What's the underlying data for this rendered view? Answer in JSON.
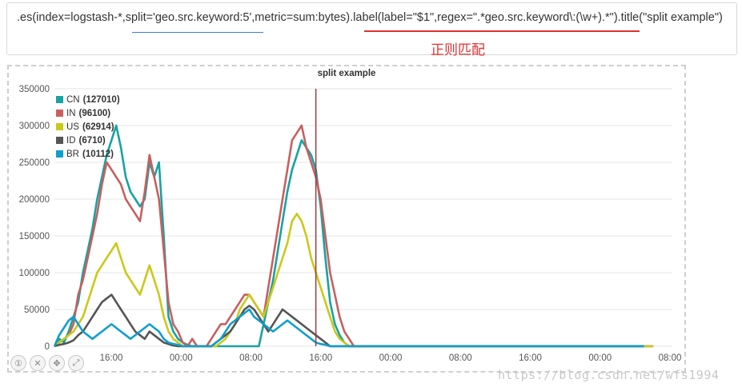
{
  "expression": ".es(index=logstash-*,split='geo.src.keyword:5',metric=sum:bytes).label(label=\"$1\",regex=\".*geo.src.keyword\\:(\\w+).*\").title(\"split example\")",
  "annotation": "正则匹配",
  "watermark": "https://blog.csdn.net/wfs1994",
  "controls": [
    "①",
    "✕",
    "✥",
    "⤢"
  ],
  "control_icons": [
    "zoom-reset-icon",
    "close-icon",
    "pan-icon",
    "fullscreen-icon"
  ],
  "chart_data": {
    "type": "line",
    "title": "split example",
    "ylim": [
      0,
      350000
    ],
    "y_ticks": [
      0,
      50000,
      100000,
      150000,
      200000,
      250000,
      300000,
      350000
    ],
    "x_ticks": [
      "16:00",
      "00:00",
      "08:00",
      "16:00",
      "00:00",
      "08:00",
      "16:00",
      "00:00",
      "08:00"
    ],
    "x_range": [
      0,
      130
    ],
    "grid": true,
    "legend_position": "top-left",
    "marker_x": 55,
    "series": [
      {
        "name": "CN",
        "count": "127010",
        "color": "#18a2a2",
        "values": [
          0,
          10000,
          5000,
          20000,
          40000,
          60000,
          100000,
          130000,
          160000,
          200000,
          230000,
          260000,
          280000,
          300000,
          270000,
          230000,
          210000,
          200000,
          190000,
          200000,
          250000,
          230000,
          250000,
          150000,
          40000,
          20000,
          10000,
          5000,
          2000,
          0,
          0,
          0,
          0,
          0,
          0,
          0,
          0,
          0,
          0,
          0,
          0,
          0,
          0,
          0,
          30000,
          60000,
          90000,
          130000,
          170000,
          210000,
          240000,
          260000,
          280000,
          270000,
          260000,
          240000,
          190000,
          120000,
          60000,
          30000,
          15000,
          5000,
          0,
          0,
          0,
          0,
          0,
          0,
          0,
          0,
          0,
          0,
          0,
          0,
          0,
          0,
          0,
          0,
          0,
          0,
          0,
          0,
          0,
          0,
          0,
          0,
          0,
          0,
          0,
          0,
          0,
          0,
          0,
          0,
          0,
          0,
          0,
          0,
          0,
          0,
          0,
          0,
          0,
          0,
          0,
          0,
          0,
          0,
          0,
          0,
          0,
          0,
          0,
          0,
          0,
          0,
          0,
          0,
          0,
          0,
          0,
          0,
          0,
          0,
          0,
          0
        ]
      },
      {
        "name": "IN",
        "count": "96100",
        "color": "#c85f5f",
        "values": [
          0,
          5000,
          10000,
          15000,
          30000,
          70000,
          90000,
          120000,
          150000,
          180000,
          220000,
          250000,
          240000,
          230000,
          220000,
          200000,
          190000,
          180000,
          170000,
          210000,
          260000,
          230000,
          200000,
          130000,
          60000,
          30000,
          20000,
          5000,
          0,
          10000,
          0,
          0,
          0,
          10000,
          20000,
          30000,
          30000,
          40000,
          50000,
          60000,
          70000,
          70000,
          60000,
          50000,
          40000,
          80000,
          120000,
          160000,
          200000,
          240000,
          280000,
          290000,
          300000,
          270000,
          250000,
          230000,
          200000,
          150000,
          100000,
          70000,
          40000,
          20000,
          10000,
          0,
          0,
          0,
          0,
          0,
          0,
          0,
          0,
          0,
          0,
          0,
          0,
          0,
          0,
          0,
          0,
          0,
          0,
          0,
          0,
          0,
          0,
          0,
          0,
          0,
          0,
          0,
          0,
          0,
          0,
          0,
          0,
          0,
          0,
          0,
          0,
          0,
          0,
          0,
          0,
          0,
          0,
          0,
          0,
          0,
          0,
          0,
          0,
          0,
          0,
          0,
          0,
          0,
          0,
          0,
          0,
          0,
          0,
          0,
          0,
          0,
          0,
          0,
          0
        ]
      },
      {
        "name": "US",
        "count": "62914",
        "color": "#c9c91a",
        "values": [
          0,
          5000,
          10000,
          15000,
          20000,
          30000,
          40000,
          60000,
          80000,
          100000,
          110000,
          120000,
          130000,
          140000,
          120000,
          100000,
          90000,
          80000,
          70000,
          90000,
          110000,
          90000,
          70000,
          40000,
          20000,
          10000,
          5000,
          0,
          0,
          0,
          0,
          0,
          0,
          0,
          0,
          5000,
          10000,
          20000,
          30000,
          50000,
          60000,
          70000,
          60000,
          50000,
          40000,
          60000,
          80000,
          100000,
          120000,
          140000,
          170000,
          180000,
          170000,
          150000,
          120000,
          100000,
          80000,
          60000,
          40000,
          20000,
          10000,
          5000,
          0,
          0,
          0,
          0,
          0,
          0,
          0,
          0,
          0,
          0,
          0,
          0,
          0,
          0,
          0,
          0,
          0,
          0,
          0,
          0,
          0,
          0,
          0,
          0,
          0,
          0,
          0,
          0,
          0,
          0,
          0,
          0,
          0,
          0,
          0,
          0,
          0,
          0,
          0,
          0,
          0,
          0,
          0,
          0,
          0,
          0,
          0,
          0,
          0,
          0,
          0,
          0,
          0,
          0,
          0,
          0,
          0,
          0,
          0,
          0,
          0,
          0,
          0,
          0,
          0
        ]
      },
      {
        "name": "ID",
        "count": "6710",
        "color": "#555555",
        "values": [
          0,
          2000,
          3000,
          5000,
          8000,
          15000,
          20000,
          30000,
          40000,
          50000,
          60000,
          65000,
          70000,
          60000,
          50000,
          40000,
          30000,
          20000,
          15000,
          10000,
          20000,
          15000,
          10000,
          5000,
          3000,
          1000,
          0,
          0,
          0,
          0,
          0,
          0,
          0,
          0,
          5000,
          10000,
          15000,
          20000,
          30000,
          40000,
          50000,
          55000,
          50000,
          40000,
          30000,
          20000,
          30000,
          40000,
          50000,
          45000,
          40000,
          35000,
          30000,
          25000,
          20000,
          15000,
          10000,
          5000,
          0,
          0,
          0,
          0,
          0,
          0,
          0,
          0,
          0,
          0,
          0,
          0,
          0,
          0,
          0,
          0,
          0,
          0,
          0,
          0,
          0,
          0,
          0,
          0,
          0,
          0,
          0,
          0,
          0,
          0,
          0,
          0,
          0,
          0,
          0,
          0,
          0,
          0,
          0,
          0,
          0,
          0,
          0,
          0,
          0,
          0,
          0,
          0,
          0,
          0,
          0,
          0,
          0,
          0,
          0,
          0,
          0,
          0,
          0,
          0,
          0,
          0,
          0,
          0,
          0,
          0,
          0
        ]
      },
      {
        "name": "BR",
        "count": "10112",
        "color": "#0f9fce",
        "values": [
          0,
          15000,
          25000,
          35000,
          40000,
          30000,
          20000,
          15000,
          10000,
          15000,
          20000,
          25000,
          30000,
          25000,
          20000,
          15000,
          10000,
          15000,
          20000,
          25000,
          30000,
          25000,
          20000,
          10000,
          5000,
          3000,
          2000,
          0,
          0,
          0,
          0,
          0,
          0,
          0,
          5000,
          10000,
          20000,
          30000,
          35000,
          40000,
          45000,
          50000,
          40000,
          35000,
          30000,
          25000,
          20000,
          25000,
          30000,
          35000,
          30000,
          25000,
          20000,
          15000,
          10000,
          5000,
          3000,
          2000,
          0,
          0,
          0,
          0,
          0,
          0,
          0,
          0,
          0,
          0,
          0,
          0,
          0,
          0,
          0,
          0,
          0,
          0,
          0,
          0,
          0,
          0,
          0,
          0,
          0,
          0,
          0,
          0,
          0,
          0,
          0,
          0,
          0,
          0,
          0,
          0,
          0,
          0,
          0,
          0,
          0,
          0,
          0,
          0,
          0,
          0,
          0,
          0,
          0,
          0,
          0,
          0,
          0,
          0,
          0,
          0,
          0,
          0,
          0,
          0,
          0,
          0,
          0,
          0,
          0,
          0,
          0
        ]
      }
    ]
  }
}
